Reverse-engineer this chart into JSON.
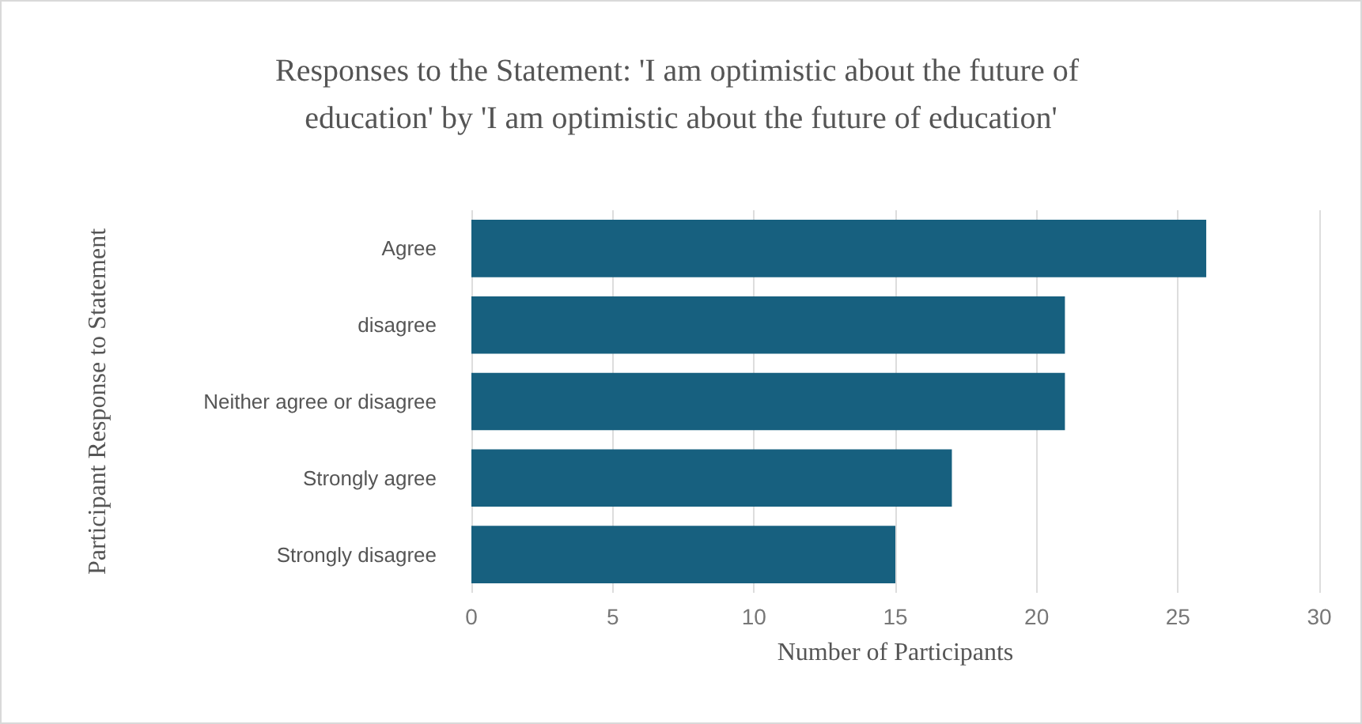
{
  "chart_data": {
    "type": "bar",
    "orientation": "horizontal",
    "title": "Responses to the Statement: 'I am optimistic about the future of education' by 'I am optimistic about the future of education'",
    "xlabel": "Number of Participants",
    "ylabel": "Participant Response to Statement",
    "categories": [
      "Agree",
      "disagree",
      "Neither agree or disagree",
      "Strongly agree",
      "Strongly disagree"
    ],
    "values": [
      26,
      21,
      21,
      17,
      15
    ],
    "color": "#17607f",
    "xlim": [
      0,
      30
    ],
    "xticks": [
      0,
      5,
      10,
      15,
      20,
      25,
      30
    ],
    "grid": "x"
  }
}
